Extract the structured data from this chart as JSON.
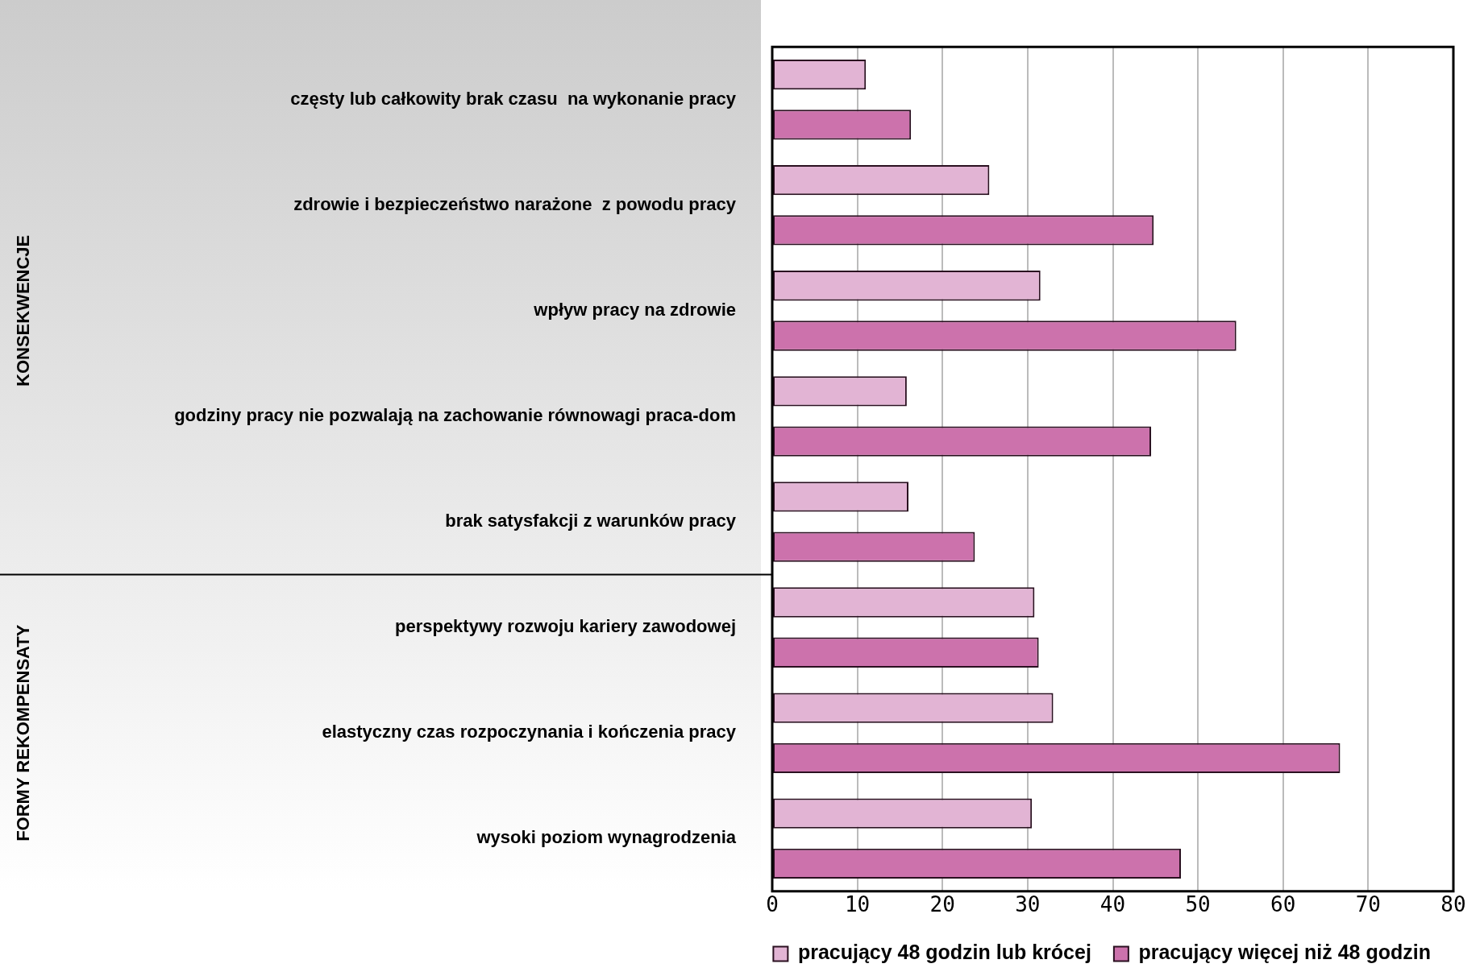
{
  "chart_data": {
    "type": "bar",
    "orientation": "horizontal",
    "categories": [
      "częsty lub całkowity brak czasu  na wykonanie pracy",
      "zdrowie i bezpieczeństwo narażone  z powodu pracy",
      "wpływ pracy na zdrowie",
      "godziny pracy nie pozwalają na zachowanie równowagi praca-dom",
      "brak satysfakcji z warunków pracy",
      "perspektywy rozwoju kariery zawodowej",
      "elastyczny czas rozpoczynania i kończenia pracy",
      "wysoki poziom wynagrodzenia"
    ],
    "series": [
      {
        "name": "pracujący 48 godzin lub krócej",
        "color": "#e2b4d4",
        "values": [
          11,
          25.5,
          31.5,
          15.8,
          16,
          30.8,
          33,
          30.5
        ]
      },
      {
        "name": "pracujący więcej niż 48 godzin",
        "color": "#cc72ac",
        "values": [
          16.3,
          44.8,
          54.5,
          44.5,
          23.8,
          31.3,
          66.7,
          48
        ]
      }
    ],
    "xlim": [
      0,
      80
    ],
    "xticks": [
      0,
      10,
      20,
      30,
      40,
      50,
      60,
      70,
      80
    ],
    "grid": "x",
    "legend": "bottom",
    "annotations": [
      "KONSEKWENCJE",
      "FORMY REKOMPENSATY"
    ]
  }
}
